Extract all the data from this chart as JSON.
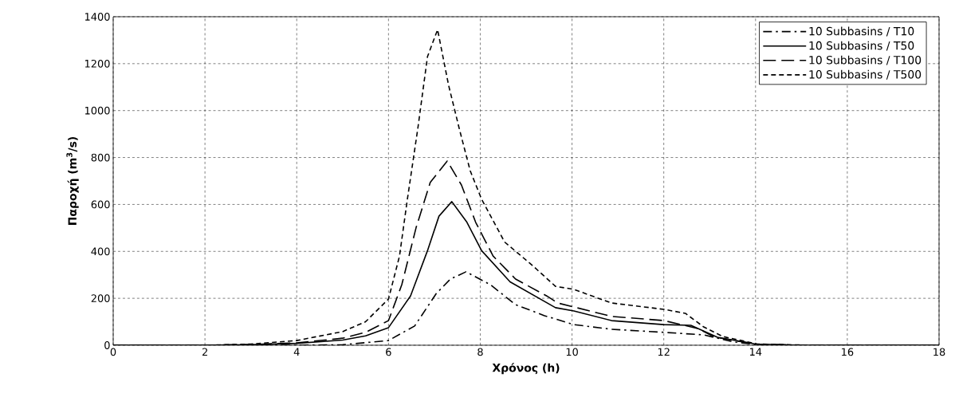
{
  "chart_data": {
    "type": "line",
    "xlabel": "Χρόνος (h)",
    "ylabel": "Παροχή (m$^{3}$/s)",
    "xlim": [
      0,
      18
    ],
    "ylim": [
      0,
      1400
    ],
    "xticks": [
      0,
      2,
      4,
      6,
      8,
      10,
      12,
      14,
      16,
      18
    ],
    "yticks": [
      0,
      200,
      400,
      600,
      800,
      1000,
      1200,
      1400
    ],
    "grid": true,
    "legend": "top right",
    "marker": "none",
    "series": [
      {
        "name": "10 Subbasins / T10",
        "color": "#000000",
        "line_style": "dashdot",
        "x": [
          0,
          2,
          4,
          5,
          6,
          6.57,
          7.04,
          7.35,
          7.69,
          8.22,
          8.77,
          9.4,
          10.04,
          10.86,
          12.0,
          12.87,
          13.5,
          14,
          15,
          18
        ],
        "values": [
          0,
          0,
          0,
          2,
          20,
          82,
          220,
          282,
          313,
          258,
          173,
          126,
          88,
          68,
          55,
          44,
          15,
          3,
          0,
          0
        ]
      },
      {
        "name": "10 Subbasins / T50",
        "color": "#000000",
        "line_style": "solid",
        "x": [
          0,
          2,
          3,
          4,
          5,
          5.5,
          6,
          6.48,
          6.85,
          7.1,
          7.38,
          7.71,
          8.03,
          8.65,
          9.64,
          10.04,
          10.86,
          12.0,
          12.59,
          13.17,
          14,
          15,
          18
        ],
        "values": [
          0,
          0,
          2,
          8,
          22,
          40,
          75,
          210,
          403,
          550,
          612,
          524,
          403,
          270,
          160,
          146,
          105,
          88,
          85,
          34,
          5,
          0,
          0
        ]
      },
      {
        "name": "10 Subbasins / T100",
        "color": "#000000",
        "line_style": "longdashed",
        "x": [
          0,
          2,
          3,
          4,
          5,
          5.5,
          6,
          6.29,
          6.6,
          6.91,
          7.28,
          7.59,
          7.9,
          8.28,
          8.77,
          9.45,
          9.69,
          10.86,
          12.0,
          12.75,
          13.1,
          14,
          15,
          18
        ],
        "values": [
          0,
          0,
          3,
          10,
          30,
          55,
          105,
          258,
          500,
          694,
          785,
          683,
          524,
          380,
          282,
          210,
          180,
          123,
          105,
          71,
          35,
          5,
          0,
          0
        ]
      },
      {
        "name": "10 Subbasins / T500",
        "color": "#000000",
        "line_style": "dashed",
        "x": [
          0,
          2,
          3,
          4,
          5,
          5.5,
          6,
          6.24,
          6.41,
          6.64,
          6.85,
          7.07,
          7.31,
          7.54,
          7.78,
          8.03,
          8.53,
          9.12,
          9.64,
          10.04,
          10.86,
          12.0,
          12.47,
          12.87,
          13.29,
          14.04,
          15,
          16,
          18
        ],
        "values": [
          0,
          0,
          5,
          20,
          58,
          100,
          197,
          380,
          620,
          925,
          1230,
          1345,
          1108,
          925,
          744,
          622,
          440,
          343,
          251,
          238,
          180,
          153,
          136,
          78,
          37,
          5,
          1,
          0,
          0
        ]
      }
    ]
  }
}
